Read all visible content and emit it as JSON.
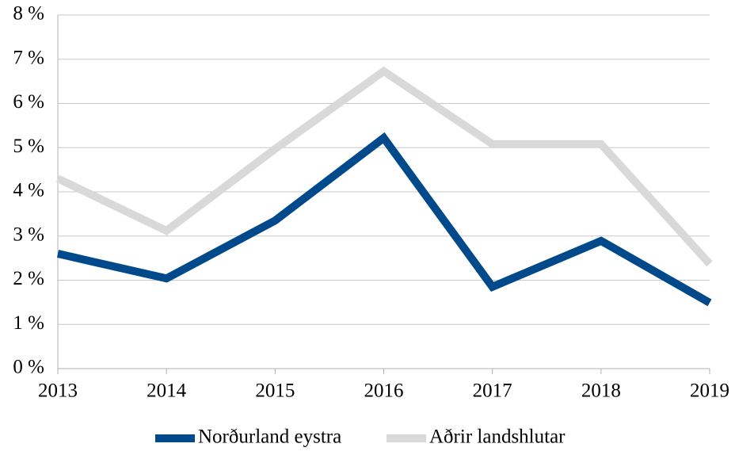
{
  "chart_data": {
    "type": "line",
    "categories": [
      "2013",
      "2014",
      "2015",
      "2016",
      "2017",
      "2018",
      "2019"
    ],
    "series": [
      {
        "name": "Norðurland eystra",
        "color": "#004a8c",
        "values": [
          2.6,
          2.04,
          3.35,
          5.22,
          1.85,
          2.89,
          1.49
        ]
      },
      {
        "name": "Aðrir landshlutar",
        "color": "#d9d9d9",
        "values": [
          4.3,
          3.12,
          4.97,
          6.73,
          5.08,
          5.08,
          2.37
        ]
      }
    ],
    "ylim": [
      0,
      8
    ],
    "yticks": [
      {
        "value": 0,
        "label": "0 %"
      },
      {
        "value": 1,
        "label": "1 %"
      },
      {
        "value": 2,
        "label": "2 %"
      },
      {
        "value": 3,
        "label": "3 %"
      },
      {
        "value": 4,
        "label": "4 %"
      },
      {
        "value": 5,
        "label": "5 %"
      },
      {
        "value": 6,
        "label": "6 %"
      },
      {
        "value": 7,
        "label": "7 %"
      },
      {
        "value": 8,
        "label": "8 %"
      }
    ],
    "grid": true,
    "legend": "bottom"
  }
}
